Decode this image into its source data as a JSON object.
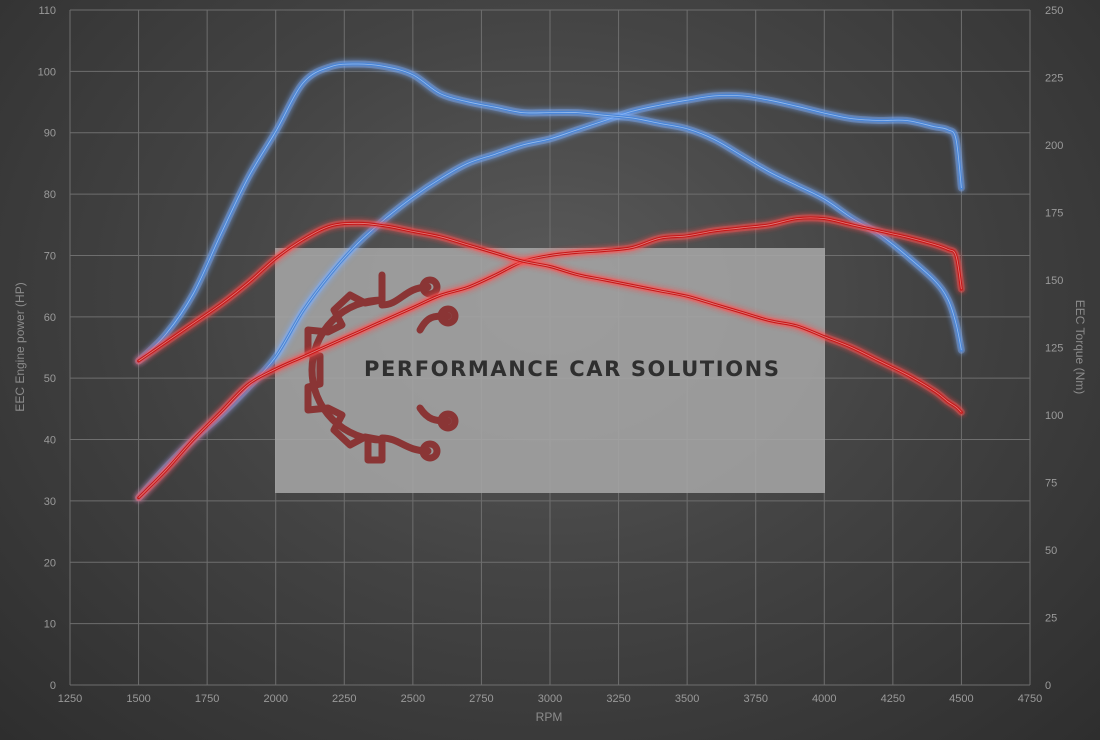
{
  "chart_data": {
    "type": "line",
    "xlabel": "RPM",
    "ylabel_left": "EEC Engine power (HP)",
    "ylabel_right": "EEC Torque (Nm)",
    "xlim": [
      1250,
      4750
    ],
    "ylim_left": [
      0,
      110
    ],
    "ylim_right": [
      0,
      250
    ],
    "x_ticks": [
      1250,
      1500,
      1750,
      2000,
      2250,
      2500,
      2750,
      3000,
      3250,
      3500,
      3750,
      4000,
      4250,
      4500,
      4750
    ],
    "y_left_ticks": [
      0,
      10,
      20,
      30,
      40,
      50,
      60,
      70,
      80,
      90,
      100,
      110
    ],
    "y_right_ticks": [
      0,
      25,
      50,
      75,
      100,
      125,
      150,
      175,
      200,
      225,
      250
    ],
    "grid": true,
    "colors": {
      "blue": "#4a86d8",
      "red": "#c81818",
      "glow_blue": "#7ab0ff",
      "glow_red": "#ff5050"
    },
    "series": [
      {
        "color": "blue",
        "axis": "left",
        "x": [
          1500,
          1600,
          1700,
          1800,
          1900,
          2000,
          2100,
          2200,
          2300,
          2400,
          2500,
          2600,
          2700,
          2800,
          2900,
          3000,
          3100,
          3200,
          3300,
          3400,
          3500,
          3600,
          3700,
          3800,
          3900,
          4000,
          4100,
          4200,
          4300,
          4400,
          4450,
          4480,
          4500
        ],
        "y": [
          30.5,
          35.5,
          40,
          44,
          48.5,
          53.5,
          61,
          67,
          72,
          76,
          79.5,
          82.5,
          85,
          86.5,
          88,
          89,
          90.5,
          92,
          93.5,
          94.5,
          95.3,
          96,
          96,
          95.3,
          94.3,
          93.2,
          92.3,
          92,
          92,
          91,
          90.5,
          89,
          81
        ]
      },
      {
        "color": "blue",
        "axis": "right",
        "x": [
          1500,
          1600,
          1700,
          1800,
          1900,
          2000,
          2100,
          2200,
          2300,
          2400,
          2500,
          2600,
          2700,
          2800,
          2900,
          3000,
          3100,
          3200,
          3300,
          3400,
          3500,
          3600,
          3700,
          3800,
          3900,
          4000,
          4100,
          4200,
          4300,
          4400,
          4450,
          4480,
          4500
        ],
        "y": [
          120,
          130,
          145,
          167,
          188,
          205,
          223,
          229,
          230,
          229,
          226,
          219,
          216,
          214,
          212,
          212,
          212,
          211,
          210,
          208,
          206,
          202,
          196,
          190,
          185,
          180,
          173,
          167,
          159,
          150,
          143,
          134,
          124
        ]
      },
      {
        "color": "red",
        "axis": "left",
        "x": [
          1500,
          1600,
          1700,
          1800,
          1900,
          2000,
          2100,
          2200,
          2300,
          2400,
          2500,
          2600,
          2700,
          2800,
          2900,
          3000,
          3100,
          3200,
          3300,
          3400,
          3500,
          3600,
          3700,
          3800,
          3900,
          4000,
          4100,
          4200,
          4300,
          4400,
          4450,
          4480,
          4500
        ],
        "y": [
          30.5,
          35,
          40,
          44.5,
          49,
          51.5,
          53.5,
          55.5,
          57.5,
          59.5,
          61.5,
          63.5,
          64.8,
          66.8,
          69,
          70,
          70.5,
          70.8,
          71.3,
          72.8,
          73.2,
          74,
          74.5,
          75,
          76,
          76,
          75,
          74,
          73,
          71.8,
          71,
          70,
          64.5
        ]
      },
      {
        "color": "red",
        "axis": "right",
        "x": [
          1500,
          1600,
          1700,
          1800,
          1900,
          2000,
          2100,
          2200,
          2300,
          2400,
          2500,
          2600,
          2700,
          2800,
          2900,
          3000,
          3100,
          3200,
          3300,
          3400,
          3500,
          3600,
          3700,
          3800,
          3900,
          4000,
          4100,
          4200,
          4300,
          4400,
          4450,
          4480,
          4500
        ],
        "y": [
          120,
          127,
          134,
          141,
          149,
          158,
          165,
          170,
          171,
          170,
          168,
          166,
          163,
          160,
          157,
          155,
          152,
          150,
          148,
          146,
          144,
          141,
          138,
          135,
          133,
          129,
          125,
          120,
          115,
          109,
          105,
          103,
          101
        ]
      }
    ]
  },
  "watermark": {
    "text": "PERFORMANCE CAR SOLUTIONS",
    "icon": "gear-circuit-logo-icon",
    "box_color": "#a8a8a8",
    "logo_color": "#8a3535"
  }
}
